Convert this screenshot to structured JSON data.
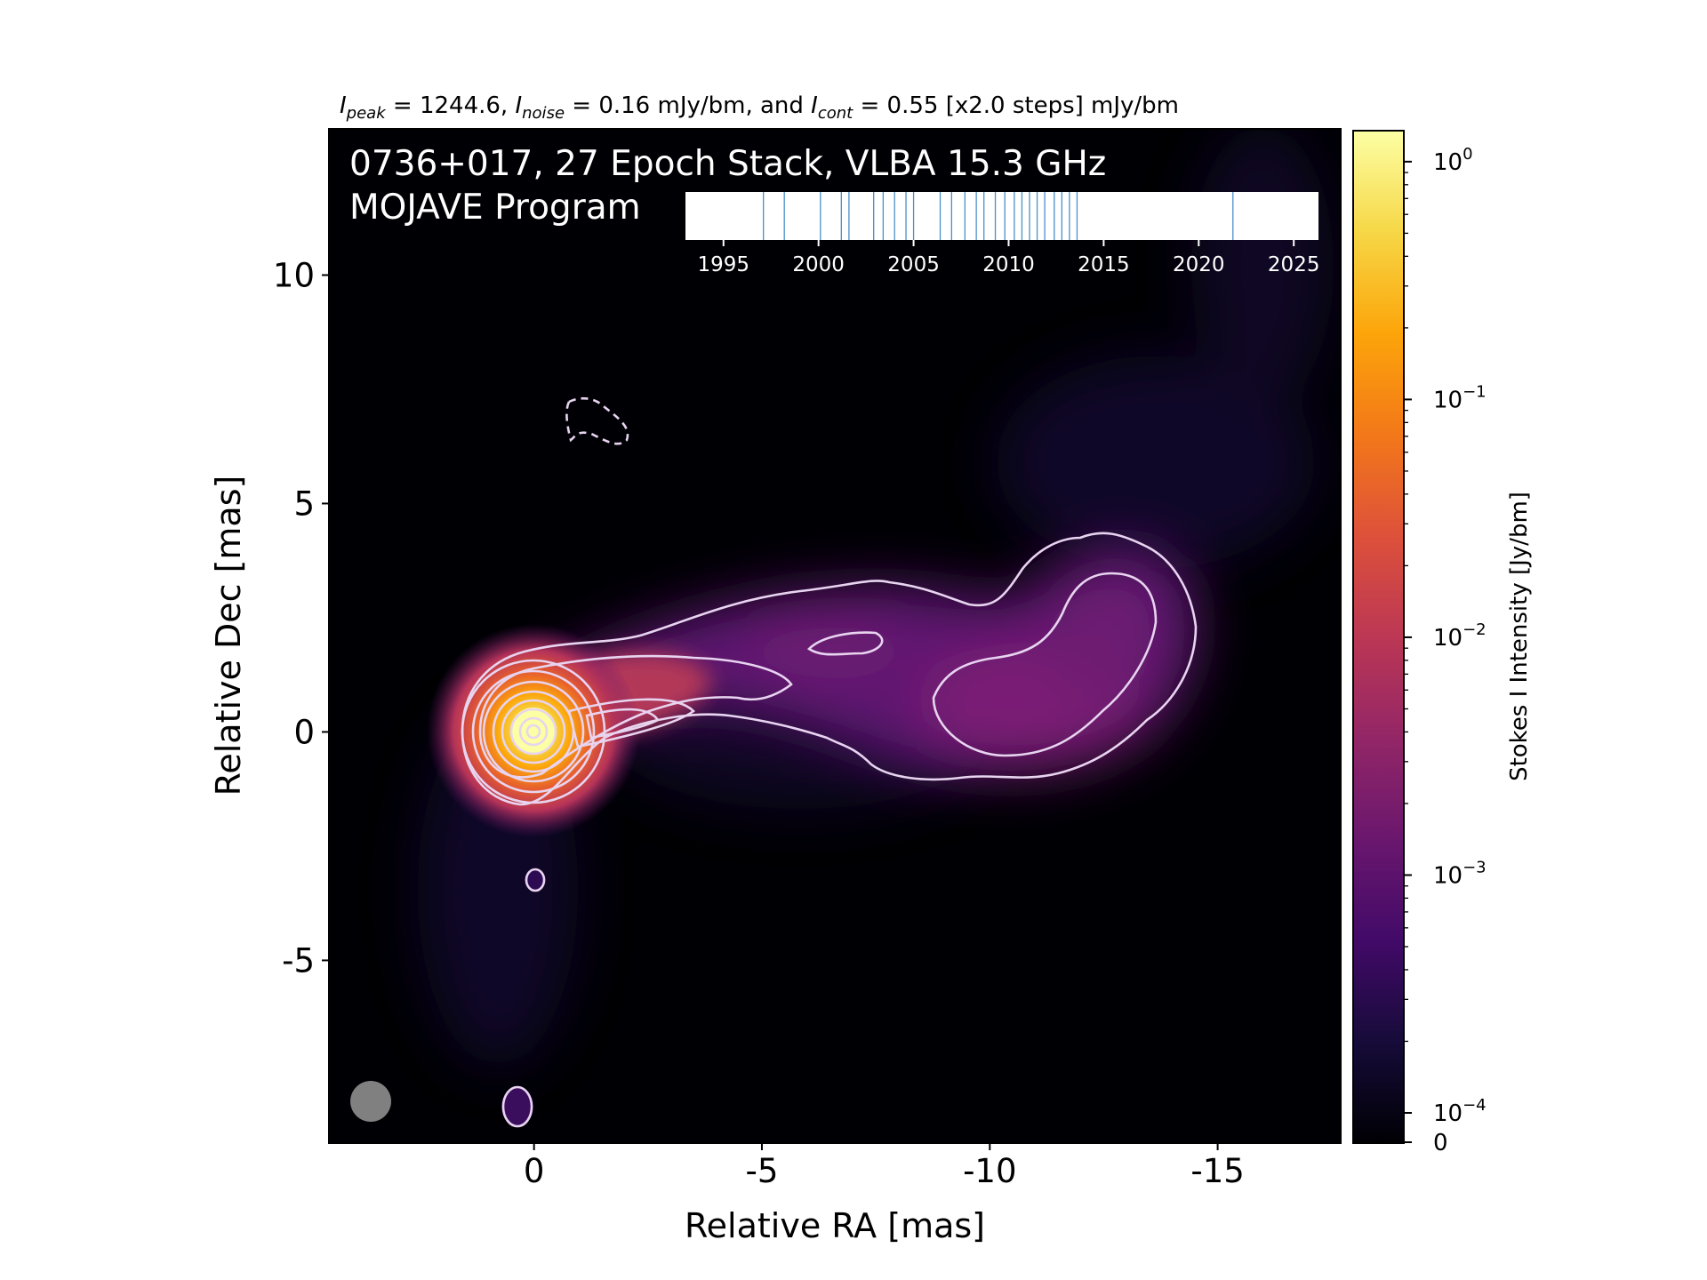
{
  "chart_data": {
    "type": "heatmap",
    "header": {
      "peak_sym": "I",
      "peak_sub": "peak",
      "peak_text": " = 1244.6, ",
      "noise_sym": "I",
      "noise_sub": "noise",
      "noise_text": " = 0.16 mJy/bm, and ",
      "cont_sym": "I",
      "cont_sub": "cont",
      "cont_text": " = 0.55 [x2.0 steps] mJy/bm"
    },
    "title_line1": "0736+017, 27 Epoch Stack, VLBA 15.3 GHz",
    "title_line2": "MOJAVE Program",
    "xlabel": "Relative RA [mas]",
    "ylabel": "Relative Dec [mas]",
    "xlim": [
      4.5,
      -17.7
    ],
    "ylim": [
      -9.0,
      13.2
    ],
    "xticks": [
      0,
      -5,
      -10,
      -15
    ],
    "xtick_labels": [
      "0",
      "-5",
      "-10",
      "-15"
    ],
    "yticks": [
      -5,
      0,
      5,
      10
    ],
    "ytick_labels": [
      "-5",
      "0",
      "5",
      "10"
    ],
    "colorbar": {
      "label": "Stokes I Intensity [Jy/bm]",
      "scale": "log",
      "ticks": [
        {
          "base": "10",
          "exp": "0",
          "value": 1.0
        },
        {
          "base": "10",
          "exp": "−1",
          "value": 0.1
        },
        {
          "base": "10",
          "exp": "−2",
          "value": 0.01
        },
        {
          "base": "10",
          "exp": "−3",
          "value": 0.001
        },
        {
          "base": "10",
          "exp": "−4",
          "value": 0.0001
        }
      ],
      "zero_label": "0",
      "colormap": "inferno"
    },
    "epoch_timeline": {
      "range": [
        1993,
        2026.3
      ],
      "tick_years": [
        1995,
        2000,
        2005,
        2010,
        2015,
        2020,
        2025
      ],
      "tick_labels": [
        "1995",
        "2000",
        "2005",
        "2010",
        "2015",
        "2020",
        "2025"
      ],
      "epochs": [
        1997.1,
        1998.2,
        2000.1,
        2001.2,
        2001.6,
        2002.9,
        2003.4,
        2004.0,
        2004.6,
        2005.0,
        2006.4,
        2007.0,
        2007.7,
        2008.3,
        2008.7,
        2009.3,
        2009.8,
        2010.3,
        2010.7,
        2011.1,
        2011.5,
        2011.9,
        2012.4,
        2012.8,
        2013.2,
        2013.6,
        2021.8
      ]
    },
    "beam": {
      "label": "",
      "color": "#808080"
    },
    "features": {
      "core_peak_mas": [
        0,
        0
      ],
      "jet_direction": "west",
      "contour_color": "#e8d4f0",
      "negative_contour_style": "dashed"
    },
    "colors": {
      "background": "#000004",
      "core": "#fcffa4",
      "jet": "#8a2a82"
    }
  }
}
